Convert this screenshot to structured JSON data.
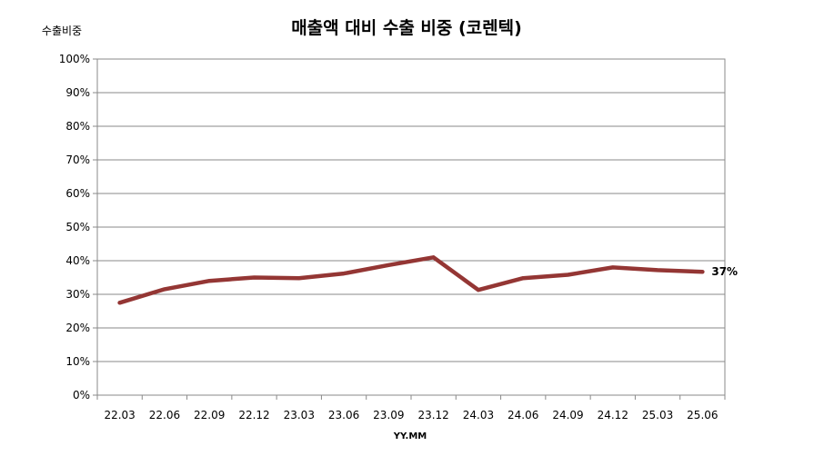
{
  "chart_data": {
    "type": "line",
    "title": "매출액 대비 수출 비중 (코렌텍)",
    "ylabel": "수출비중",
    "xlabel": "YY.MM",
    "ylim": [
      0,
      100
    ],
    "y_ticks": [
      "0%",
      "10%",
      "20%",
      "30%",
      "40%",
      "50%",
      "60%",
      "70%",
      "80%",
      "90%",
      "100%"
    ],
    "categories": [
      "22.03",
      "22.06",
      "22.09",
      "22.12",
      "23.03",
      "23.06",
      "23.09",
      "23.12",
      "24.03",
      "24.06",
      "24.09",
      "24.12",
      "25.03",
      "25.06"
    ],
    "series": [
      {
        "values": [
          27.5,
          31.5,
          34.0,
          35.0,
          34.8,
          36.2,
          38.7,
          41.0,
          31.3,
          34.8,
          35.8,
          38.0,
          37.2,
          36.7
        ],
        "color": "#943634"
      }
    ],
    "last_point_label": "37%",
    "grid": true,
    "legend": "none"
  }
}
